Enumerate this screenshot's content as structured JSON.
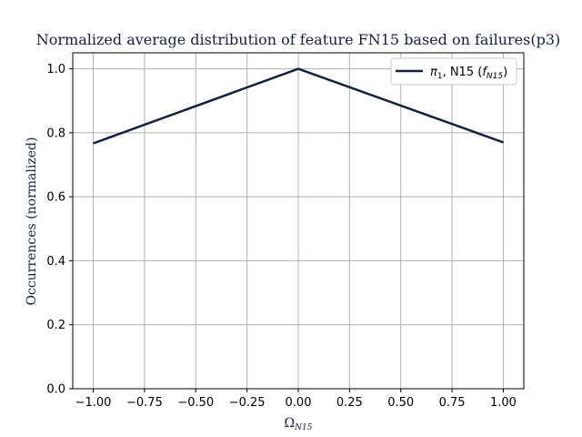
{
  "chart_data": {
    "type": "line",
    "title": "Normalized average distribution of feature FN15 based on failures(p3)",
    "xlabel": "Ω",
    "xlabel_sub": "N15",
    "ylabel": "Occurrences (normalized)",
    "xlim": [
      -1.1,
      1.1
    ],
    "ylim": [
      0.0,
      1.05
    ],
    "xticks": [
      -1.0,
      -0.75,
      -0.5,
      -0.25,
      0.0,
      0.25,
      0.5,
      0.75,
      1.0
    ],
    "xtick_labels": [
      "−1.00",
      "−0.75",
      "−0.50",
      "−0.25",
      "0.00",
      "0.25",
      "0.50",
      "0.75",
      "1.00"
    ],
    "yticks": [
      0.0,
      0.2,
      0.4,
      0.6,
      0.8,
      1.0
    ],
    "ytick_labels": [
      "0.0",
      "0.2",
      "0.4",
      "0.6",
      "0.8",
      "1.0"
    ],
    "grid": true,
    "legend_position": "top-right",
    "series": [
      {
        "name": "π1, N15 (fN15)",
        "legend_parts": {
          "pi": "π",
          "pi_sub": "1",
          "mid": ", N15 (",
          "f": "f",
          "f_sub": "N15",
          "close": ")"
        },
        "color": "#14213d",
        "x": [
          -1.0,
          0.0,
          1.0
        ],
        "y": [
          0.767,
          1.0,
          0.77
        ]
      }
    ],
    "colors": {
      "title": "#14213d",
      "grid": "#b0b0b0",
      "axis": "#000000",
      "line": "#14213d"
    }
  }
}
